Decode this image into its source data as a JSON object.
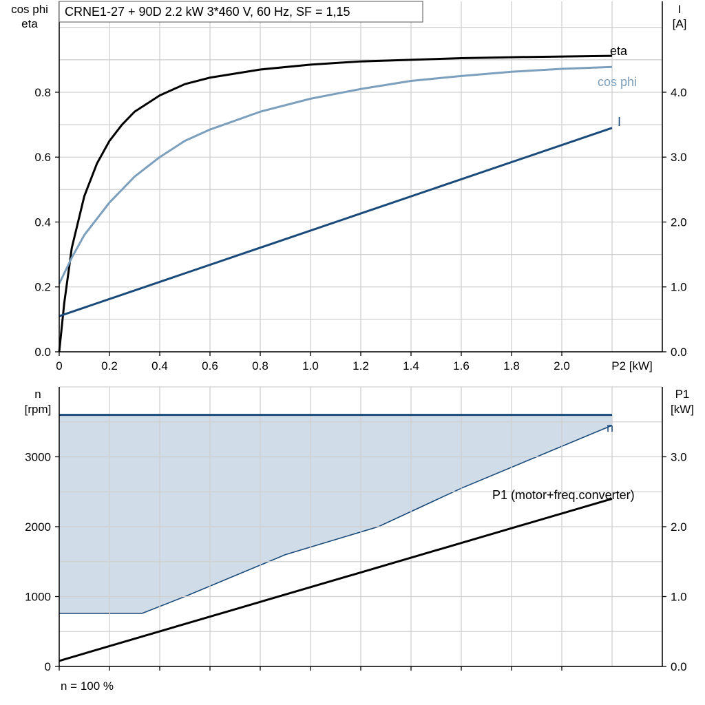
{
  "title": "CRNE1-27 + 90D   2.2 kW   3*460 V, 60 Hz, SF = 1,15",
  "footer": "n = 100 %",
  "chart_data": [
    {
      "type": "line",
      "name": "efficiency-chart",
      "xlabel": "P2 [kW]",
      "xlim": [
        0,
        2.4
      ],
      "x_ticks": [
        0,
        0.2,
        0.4,
        0.6,
        0.8,
        1.0,
        1.2,
        1.4,
        1.6,
        1.8,
        2.0
      ],
      "x_tick_labels": [
        "0",
        "0.2",
        "0.4",
        "0.6",
        "0.8",
        "1.0",
        "1.2",
        "1.4",
        "1.6",
        "1.8",
        "2.0"
      ],
      "ylabel_left": [
        "cos phi",
        "eta"
      ],
      "ylim_left": [
        0,
        1.08
      ],
      "y_left_ticks": [
        0,
        0.2,
        0.4,
        0.6,
        0.8
      ],
      "y_left_tick_labels": [
        "0.0",
        "0.2",
        "0.4",
        "0.6",
        "0.8"
      ],
      "ylabel_right": [
        "I",
        "[A]"
      ],
      "ylim_right": [
        0,
        5.4
      ],
      "y_right_ticks": [
        0,
        1,
        2,
        3,
        4
      ],
      "y_right_tick_labels": [
        "0.0",
        "1.0",
        "2.0",
        "3.0",
        "4.0"
      ],
      "grid": true,
      "series": [
        {
          "name": "eta",
          "axis": "left",
          "color": "#000000",
          "x": [
            0,
            0.02,
            0.05,
            0.1,
            0.15,
            0.2,
            0.25,
            0.3,
            0.4,
            0.5,
            0.6,
            0.8,
            1.0,
            1.2,
            1.4,
            1.6,
            1.8,
            2.0,
            2.2
          ],
          "y": [
            0,
            0.15,
            0.32,
            0.48,
            0.58,
            0.65,
            0.7,
            0.74,
            0.79,
            0.825,
            0.845,
            0.87,
            0.885,
            0.895,
            0.9,
            0.905,
            0.908,
            0.91,
            0.912
          ]
        },
        {
          "name": "cos phi",
          "axis": "left",
          "color": "#7b9fbc",
          "x": [
            0,
            0.05,
            0.1,
            0.2,
            0.3,
            0.4,
            0.5,
            0.6,
            0.8,
            1.0,
            1.2,
            1.4,
            1.6,
            1.8,
            2.0,
            2.2
          ],
          "y": [
            0.21,
            0.29,
            0.36,
            0.46,
            0.54,
            0.6,
            0.65,
            0.685,
            0.74,
            0.78,
            0.81,
            0.835,
            0.85,
            0.863,
            0.872,
            0.878
          ]
        },
        {
          "name": "I",
          "axis": "right",
          "color": "#1a4a7a",
          "x": [
            0,
            2.2
          ],
          "y": [
            0.55,
            3.45
          ]
        }
      ]
    },
    {
      "type": "area",
      "name": "speed-power-chart",
      "xlim": [
        0,
        2.4
      ],
      "x_ticks": [
        0,
        0.2,
        0.4,
        0.6,
        0.8,
        1.0,
        1.2,
        1.4,
        1.6,
        1.8,
        2.0
      ],
      "ylabel_left": [
        "n",
        "[rpm]"
      ],
      "ylim_left": [
        0,
        4000
      ],
      "y_left_ticks": [
        0,
        1000,
        2000,
        3000
      ],
      "y_left_tick_labels": [
        "0",
        "1000",
        "2000",
        "3000"
      ],
      "ylabel_right": [
        "P1",
        "[kW]"
      ],
      "ylim_right": [
        0,
        4.0
      ],
      "y_right_ticks": [
        0,
        1,
        2,
        3
      ],
      "y_right_tick_labels": [
        "0.0",
        "1.0",
        "2.0",
        "3.0"
      ],
      "grid": true,
      "band": {
        "color": "#d0dce8",
        "upper": {
          "x": [
            0,
            2.2
          ],
          "y": [
            3600,
            3600
          ]
        },
        "lower": {
          "x": [
            0,
            0.33,
            0.5,
            0.9,
            1.27,
            1.6,
            1.9,
            2.2
          ],
          "y": [
            760,
            760,
            1000,
            1600,
            2000,
            2550,
            3000,
            3450
          ]
        }
      },
      "series": [
        {
          "name": "n",
          "axis": "left",
          "color": "#1a4a7a",
          "x": [
            0,
            2.2
          ],
          "y": [
            3600,
            3600
          ]
        },
        {
          "name": "P1 (motor+freq.converter)",
          "axis": "right",
          "color": "#000000",
          "x": [
            0,
            2.2
          ],
          "y": [
            0.08,
            2.4
          ]
        }
      ]
    }
  ]
}
